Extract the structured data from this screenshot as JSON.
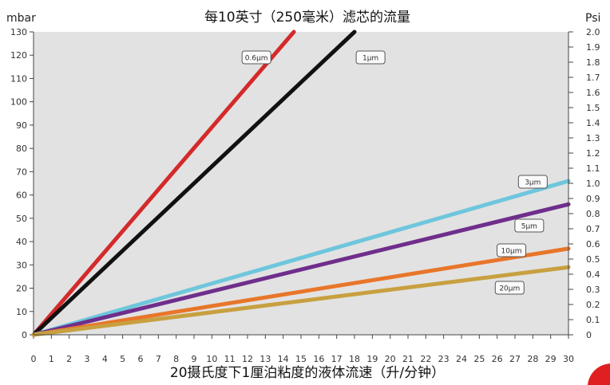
{
  "chart_data": {
    "type": "line",
    "title": "每10英寸（250毫米）滤芯的流量",
    "xlabel": "20摄氏度下1厘泊粘度的液体流速（升/分钟）",
    "ylabel_left": "mbar",
    "ylabel_right": "Psi",
    "xlim": [
      0,
      30
    ],
    "ylim": [
      0,
      130
    ],
    "y2lim": [
      0,
      2.0
    ],
    "x_ticks": [
      0,
      1,
      2,
      3,
      4,
      5,
      6,
      7,
      8,
      9,
      10,
      11,
      12,
      13,
      14,
      15,
      16,
      17,
      18,
      19,
      20,
      21,
      22,
      23,
      24,
      25,
      26,
      27,
      28,
      29,
      30
    ],
    "y_ticks": [
      0,
      10,
      20,
      30,
      40,
      50,
      60,
      70,
      80,
      90,
      100,
      110,
      120,
      130
    ],
    "y2_ticks": [
      "0",
      "0.1",
      "0.2",
      "0.3",
      "0.4",
      "0.5",
      "0.6",
      "0.7",
      "0.8",
      "0.9",
      "1.0",
      "1.1",
      "1.2",
      "1.3",
      "1.4",
      "1.5",
      "1.6",
      "1.7",
      "1.8",
      "1.9",
      "2.0"
    ],
    "grid": false,
    "series": [
      {
        "name": "0.6μm",
        "color": "#d42a2a",
        "x": [
          0,
          14.6
        ],
        "y": [
          0,
          130
        ]
      },
      {
        "name": "1μm",
        "color": "#111111",
        "x": [
          0,
          18.0
        ],
        "y": [
          0,
          130
        ]
      },
      {
        "name": "3μm",
        "color": "#6ec6dc",
        "x": [
          0,
          30
        ],
        "y": [
          0,
          66
        ]
      },
      {
        "name": "5μm",
        "color": "#6f2e8c",
        "x": [
          0,
          30
        ],
        "y": [
          0,
          56
        ]
      },
      {
        "name": "10μm",
        "color": "#e8762a",
        "x": [
          0,
          30
        ],
        "y": [
          0,
          37
        ]
      },
      {
        "name": "20μm",
        "color": "#c8a040",
        "x": [
          0,
          30
        ],
        "y": [
          0,
          29
        ]
      }
    ]
  }
}
